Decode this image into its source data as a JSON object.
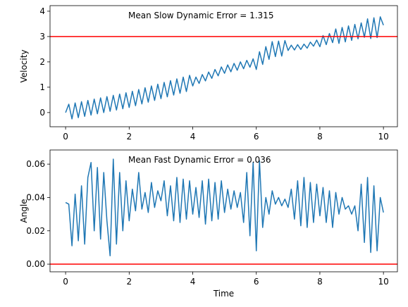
{
  "chart_data": [
    {
      "type": "line",
      "annotation": "Mean Slow Dynamic Error = 1.315",
      "ylabel": "Velocity",
      "xlim": [
        -0.49,
        10.44
      ],
      "ylim": [
        -0.56,
        4.22
      ],
      "xticks": [
        0,
        2,
        4,
        6,
        8,
        10
      ],
      "yticks": [
        0,
        1,
        2,
        3,
        4
      ],
      "hline": {
        "value": 3,
        "color": "#ff0000"
      },
      "x": [
        0,
        0.1,
        0.2,
        0.3,
        0.4,
        0.5,
        0.6,
        0.7,
        0.8,
        0.9,
        1,
        1.1,
        1.2,
        1.3,
        1.4,
        1.5,
        1.6,
        1.7,
        1.8,
        1.9,
        2,
        2.1,
        2.2,
        2.3,
        2.4,
        2.5,
        2.6,
        2.7,
        2.8,
        2.9,
        3,
        3.1,
        3.2,
        3.3,
        3.4,
        3.5,
        3.6,
        3.7,
        3.8,
        3.9,
        4,
        4.1,
        4.2,
        4.3,
        4.4,
        4.5,
        4.6,
        4.7,
        4.8,
        4.9,
        5,
        5.1,
        5.2,
        5.3,
        5.4,
        5.5,
        5.6,
        5.7,
        5.8,
        5.9,
        6,
        6.1,
        6.2,
        6.3,
        6.4,
        6.5,
        6.6,
        6.7,
        6.8,
        6.9,
        7,
        7.1,
        7.2,
        7.3,
        7.4,
        7.5,
        7.6,
        7.7,
        7.8,
        7.9,
        8,
        8.1,
        8.2,
        8.3,
        8.4,
        8.5,
        8.6,
        8.7,
        8.8,
        8.9,
        9,
        9.1,
        9.2,
        9.3,
        9.4,
        9.5,
        9.6,
        9.7,
        9.8,
        9.9,
        10
      ],
      "series": [
        {
          "color": "#1f77b4",
          "values": [
            0.0,
            0.33,
            -0.25,
            0.38,
            -0.2,
            0.43,
            -0.15,
            0.48,
            -0.1,
            0.53,
            -0.05,
            0.58,
            0.0,
            0.63,
            0.05,
            0.68,
            0.1,
            0.73,
            0.15,
            0.78,
            0.2,
            0.84,
            0.27,
            0.91,
            0.34,
            0.98,
            0.41,
            1.05,
            0.48,
            1.12,
            0.55,
            1.19,
            0.62,
            1.26,
            0.69,
            1.33,
            0.76,
            1.4,
            0.83,
            1.47,
            1.05,
            1.4,
            1.15,
            1.5,
            1.25,
            1.6,
            1.35,
            1.7,
            1.45,
            1.8,
            1.55,
            1.88,
            1.61,
            1.94,
            1.67,
            2.0,
            1.73,
            2.06,
            1.79,
            2.12,
            1.7,
            2.4,
            1.9,
            2.6,
            2.1,
            2.8,
            2.21,
            2.82,
            2.23,
            2.84,
            2.45,
            2.66,
            2.47,
            2.68,
            2.49,
            2.7,
            2.54,
            2.78,
            2.62,
            2.86,
            2.6,
            3.04,
            2.68,
            3.12,
            2.76,
            3.3,
            2.73,
            3.36,
            2.79,
            3.42,
            2.85,
            3.48,
            2.91,
            3.54,
            2.97,
            3.7,
            2.92,
            3.74,
            2.96,
            3.78,
            3.45
          ]
        }
      ]
    },
    {
      "type": "line",
      "annotation": "Mean Fast Dynamic Error = 0.036",
      "ylabel": "Angle",
      "xlabel": "Time",
      "xlim": [
        -0.49,
        10.44
      ],
      "ylim": [
        -0.0046,
        0.0685
      ],
      "xticks": [
        0,
        2,
        4,
        6,
        8,
        10
      ],
      "yticks": [
        {
          "value": 0,
          "label": "0.00"
        },
        0.02,
        0.04,
        0.06
      ],
      "hline": {
        "value": 0,
        "color": "#ff0000"
      },
      "x": [
        0,
        0.1,
        0.2,
        0.3,
        0.4,
        0.5,
        0.6,
        0.7,
        0.8,
        0.9,
        1,
        1.1,
        1.2,
        1.3,
        1.4,
        1.5,
        1.6,
        1.7,
        1.8,
        1.9,
        2,
        2.1,
        2.2,
        2.3,
        2.4,
        2.5,
        2.6,
        2.7,
        2.8,
        2.9,
        3,
        3.1,
        3.2,
        3.3,
        3.4,
        3.5,
        3.6,
        3.7,
        3.8,
        3.9,
        4,
        4.1,
        4.2,
        4.3,
        4.4,
        4.5,
        4.6,
        4.7,
        4.8,
        4.9,
        5,
        5.1,
        5.2,
        5.3,
        5.4,
        5.5,
        5.6,
        5.7,
        5.8,
        5.9,
        6,
        6.1,
        6.2,
        6.3,
        6.4,
        6.5,
        6.6,
        6.7,
        6.8,
        6.9,
        7,
        7.1,
        7.2,
        7.3,
        7.4,
        7.5,
        7.6,
        7.7,
        7.8,
        7.9,
        8,
        8.1,
        8.2,
        8.3,
        8.4,
        8.5,
        8.6,
        8.7,
        8.8,
        8.9,
        9,
        9.1,
        9.2,
        9.3,
        9.4,
        9.5,
        9.6,
        9.7,
        9.8,
        9.9,
        10
      ],
      "series": [
        {
          "color": "#1f77b4",
          "values": [
            0.037,
            0.036,
            0.011,
            0.042,
            0.014,
            0.047,
            0.012,
            0.052,
            0.061,
            0.02,
            0.058,
            0.015,
            0.055,
            0.026,
            0.005,
            0.063,
            0.012,
            0.055,
            0.02,
            0.05,
            0.026,
            0.045,
            0.032,
            0.055,
            0.033,
            0.043,
            0.031,
            0.049,
            0.034,
            0.044,
            0.038,
            0.05,
            0.029,
            0.047,
            0.026,
            0.052,
            0.025,
            0.051,
            0.027,
            0.05,
            0.03,
            0.046,
            0.028,
            0.05,
            0.024,
            0.051,
            0.026,
            0.049,
            0.027,
            0.05,
            0.031,
            0.045,
            0.033,
            0.044,
            0.034,
            0.043,
            0.025,
            0.055,
            0.017,
            0.061,
            0.008,
            0.062,
            0.022,
            0.04,
            0.03,
            0.044,
            0.036,
            0.04,
            0.035,
            0.039,
            0.034,
            0.045,
            0.027,
            0.05,
            0.023,
            0.052,
            0.022,
            0.049,
            0.025,
            0.048,
            0.029,
            0.046,
            0.025,
            0.044,
            0.022,
            0.043,
            0.03,
            0.04,
            0.033,
            0.035,
            0.03,
            0.035,
            0.02,
            0.048,
            0.013,
            0.052,
            0.007,
            0.047,
            0.008,
            0.04,
            0.031
          ]
        }
      ]
    }
  ]
}
